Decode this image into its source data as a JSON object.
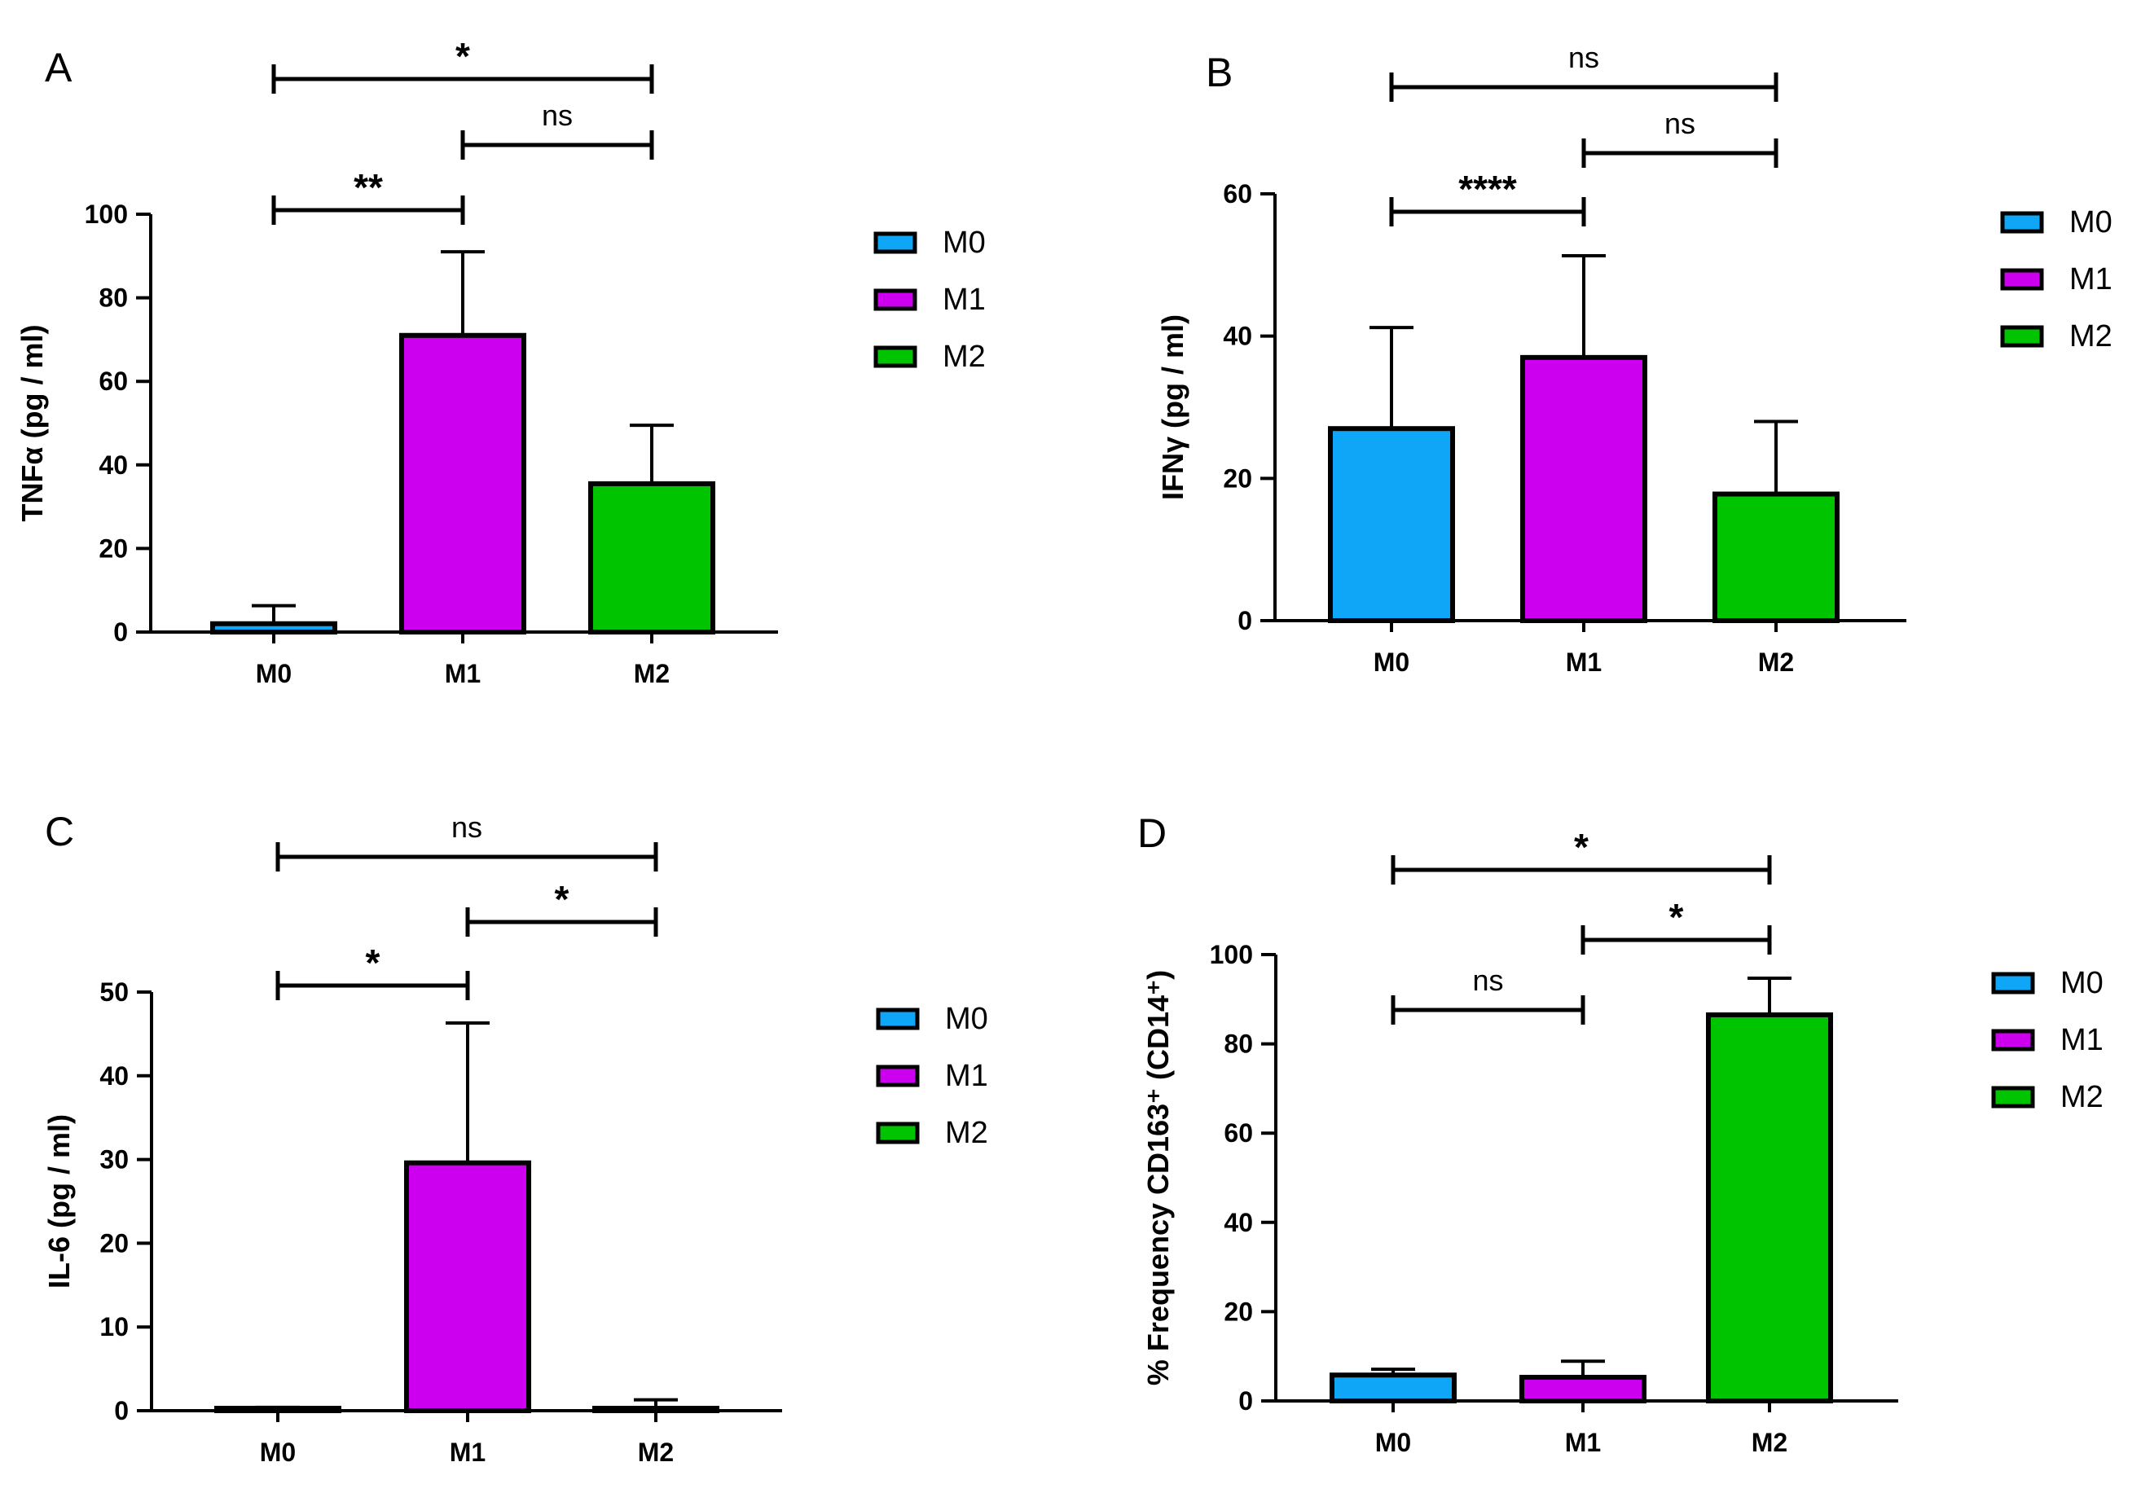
{
  "colors": {
    "M0": "#0fa6f7",
    "M1": "#cc00ee",
    "M2": "#00c400"
  },
  "legend": [
    "M0",
    "M1",
    "M2"
  ],
  "chart_data": [
    {
      "panel": "A",
      "type": "bar",
      "categories": [
        "M0",
        "M1",
        "M2"
      ],
      "values": [
        2,
        71,
        35.5
      ],
      "errors": [
        4.3,
        20,
        14
      ],
      "ylabel": "TNFα (pg / ml)",
      "ylim": [
        0,
        100
      ],
      "yticks": [
        "0",
        "20",
        "40",
        "60",
        "80",
        "100"
      ],
      "comparisons": [
        {
          "from": "M0",
          "to": "M2",
          "label": "*"
        },
        {
          "from": "M1",
          "to": "M2",
          "label": "ns"
        },
        {
          "from": "M0",
          "to": "M1",
          "label": "**"
        }
      ]
    },
    {
      "panel": "B",
      "type": "bar",
      "categories": [
        "M0",
        "M1",
        "M2"
      ],
      "values": [
        27,
        37,
        17.8
      ],
      "errors": [
        14.2,
        14.3,
        10.2
      ],
      "ylabel": "IFNγ (pg / ml)",
      "ylim": [
        0,
        60
      ],
      "yticks": [
        "0",
        "20",
        "40",
        "60"
      ],
      "comparisons": [
        {
          "from": "M0",
          "to": "M2",
          "label": "ns"
        },
        {
          "from": "M1",
          "to": "M2",
          "label": "ns"
        },
        {
          "from": "M0",
          "to": "M1",
          "label": "****"
        }
      ]
    },
    {
      "panel": "C",
      "type": "bar",
      "categories": [
        "M0",
        "M1",
        "M2"
      ],
      "values": [
        0.2,
        29.6,
        0.2
      ],
      "errors": [
        0.2,
        16.7,
        1.1
      ],
      "ylabel": "IL-6 (pg / ml)",
      "ylim": [
        0,
        50
      ],
      "yticks": [
        "0",
        "10",
        "20",
        "30",
        "40",
        "50"
      ],
      "comparisons": [
        {
          "from": "M0",
          "to": "M2",
          "label": "ns"
        },
        {
          "from": "M1",
          "to": "M2",
          "label": "*"
        },
        {
          "from": "M0",
          "to": "M1",
          "label": "*"
        }
      ]
    },
    {
      "panel": "D",
      "type": "bar",
      "categories": [
        "M0",
        "M1",
        "M2"
      ],
      "values": [
        5.8,
        5.3,
        86.5
      ],
      "errors": [
        1.3,
        3.6,
        8.2
      ],
      "ylabel": "% Frequency CD163⁺ (CD14⁺)",
      "ylim": [
        0,
        100
      ],
      "yticks": [
        "0",
        "20",
        "40",
        "60",
        "80",
        "100"
      ],
      "comparisons": [
        {
          "from": "M0",
          "to": "M2",
          "label": "*"
        },
        {
          "from": "M1",
          "to": "M2",
          "label": "*"
        },
        {
          "from": "M0",
          "to": "M1",
          "label": "ns"
        }
      ]
    }
  ]
}
